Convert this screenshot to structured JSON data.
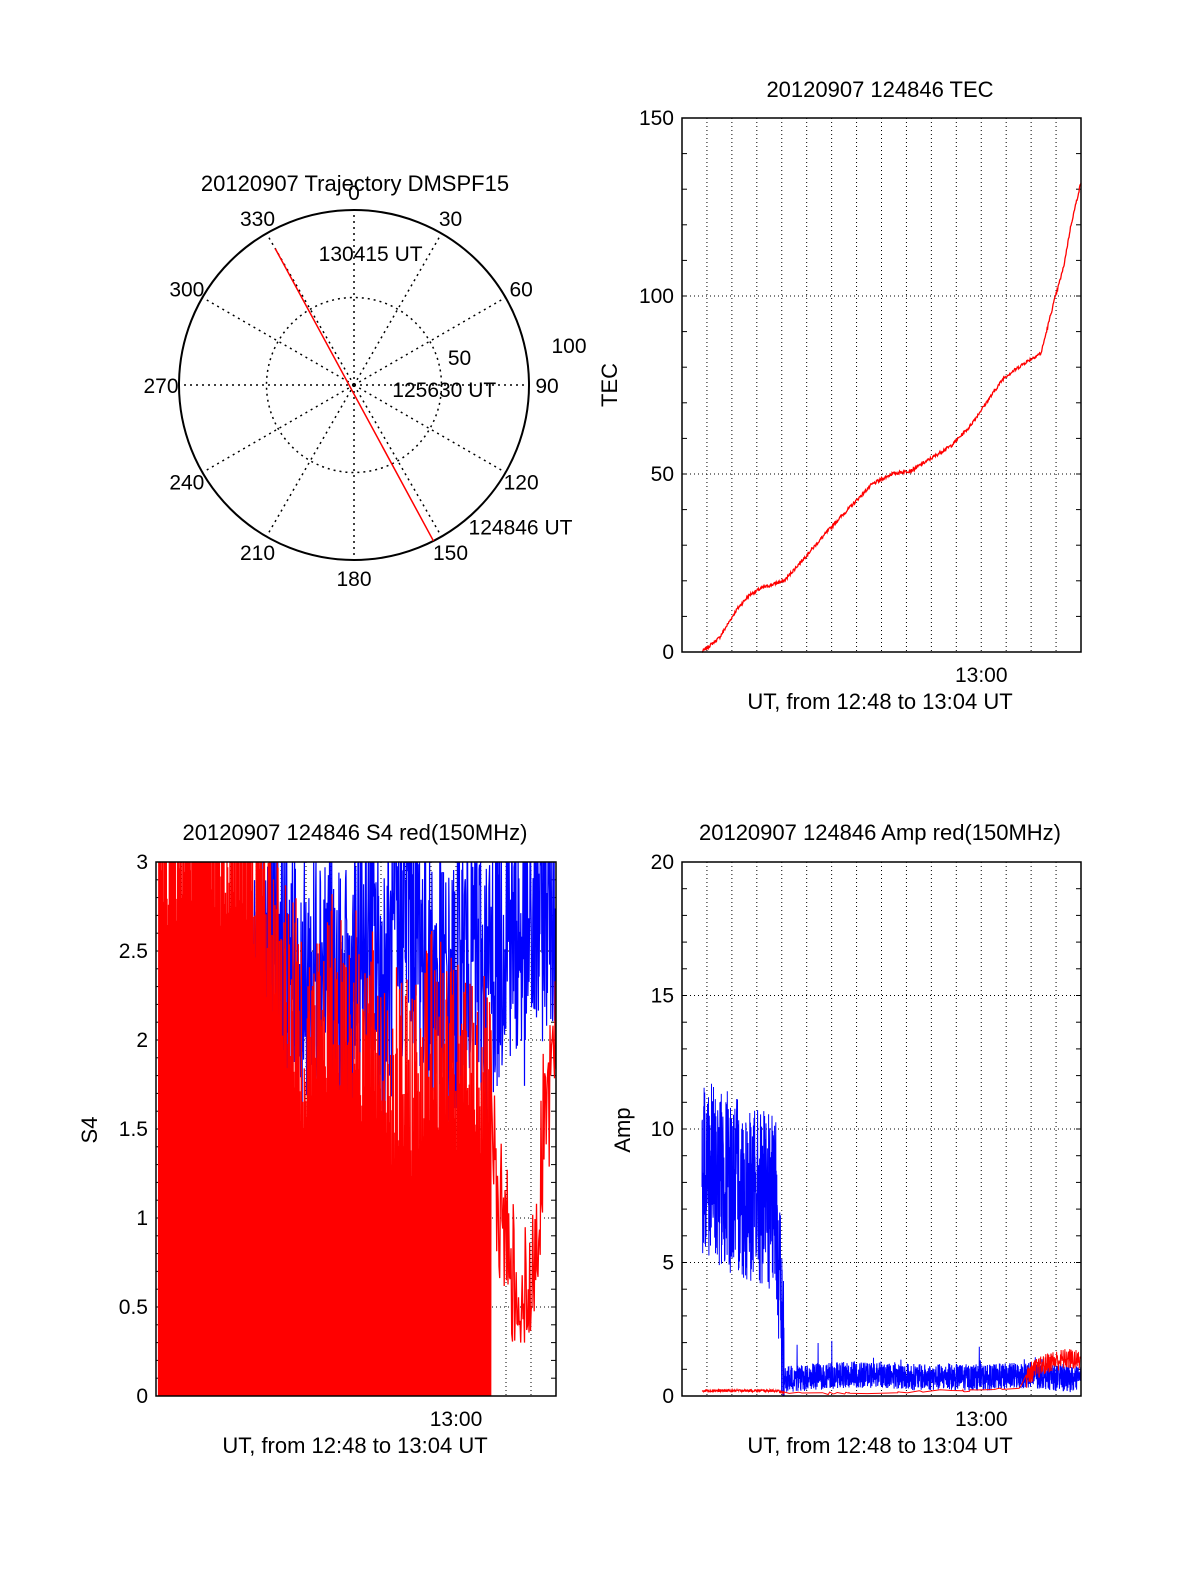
{
  "colors": {
    "red": "#ff0000",
    "blue": "#0000ff",
    "axis": "#000000"
  },
  "chart_data": [
    {
      "type": "polar",
      "title": "20120907 Trajectory DMSPF15",
      "angle_labels": [
        "0",
        "30",
        "60",
        "90",
        "120",
        "150",
        "180",
        "210",
        "240",
        "270",
        "300",
        "330"
      ],
      "radial_ticks": [
        "50",
        "100"
      ],
      "rmax": 100,
      "grid": true,
      "series": [
        {
          "color": "red",
          "points": [
            {
              "az": 153,
              "r": 100
            },
            {
              "az": 330,
              "r": 90
            }
          ]
        }
      ],
      "annotations": [
        {
          "text": "130415 UT",
          "az": 345,
          "r": 78
        },
        {
          "text": "125630 UT",
          "az": 96,
          "r": 22
        },
        {
          "text": "124846 UT",
          "az": 141,
          "r": 104
        }
      ]
    },
    {
      "type": "line",
      "title": "20120907 124846 TEC",
      "ylabel": "TEC",
      "xlabel": "UT, from 12:48 to 13:04 UT",
      "x_tick_labels": [
        {
          "x": 12.0,
          "label": "13:00"
        }
      ],
      "ylim": [
        0,
        150
      ],
      "xlim": [
        0,
        16
      ],
      "y_ticks": [
        "0",
        "50",
        "100",
        "150"
      ],
      "grid": true,
      "series": [
        {
          "color": "red",
          "x": [
            0.8,
            1.5,
            2.2,
            2.7,
            3.2,
            4.1,
            5.1,
            6.1,
            7.6,
            8.4,
            9.2,
            9.9,
            10.8,
            11.5,
            12.2,
            12.9,
            13.7,
            14.4,
            14.9,
            15.3,
            15.6,
            16.0
          ],
          "y": [
            0,
            4,
            12,
            16,
            18,
            20,
            28,
            36,
            47,
            50,
            51,
            54,
            58,
            63,
            70,
            77,
            81,
            84,
            98,
            108,
            120,
            132
          ]
        }
      ]
    },
    {
      "type": "line",
      "title": "20120907 124846 S4 red(150MHz)",
      "ylabel": "S4",
      "xlabel": "UT, from 12:48 to 13:04 UT",
      "x_tick_labels": [
        {
          "x": 12.0,
          "label": "13:00"
        }
      ],
      "ylim": [
        0,
        3
      ],
      "xlim": [
        0,
        16
      ],
      "y_ticks": [
        "0",
        "0.5",
        "1",
        "1.5",
        "2",
        "2.5",
        "3"
      ],
      "grid": true,
      "series": [
        {
          "color": "blue",
          "x": [
            0.1,
            0.8,
            1.6,
            2.4,
            3.2,
            3.6,
            3.8,
            4.3,
            5.0,
            5.8,
            6.6,
            7.5,
            8.4,
            9.2,
            10.1,
            11.0,
            11.8,
            12.5,
            13.2,
            14.0,
            14.8,
            15.5,
            16.0
          ],
          "y": [
            0.22,
            0.23,
            0.25,
            0.26,
            0.27,
            0.28,
            2.0,
            2.4,
            2.7,
            2.2,
            2.5,
            2.1,
            2.6,
            2.3,
            2.8,
            2.4,
            2.2,
            2.6,
            2.3,
            2.7,
            2.5,
            2.8,
            2.9
          ]
        },
        {
          "color": "red",
          "x": [
            0.1,
            0.8,
            1.6,
            2.4,
            3.2,
            4.0,
            5.0,
            6.0,
            7.0,
            8.0,
            9.0,
            10.0,
            11.0,
            12.0,
            13.0,
            13.6,
            14.0,
            14.5,
            15.0,
            15.5,
            16.0
          ],
          "y": [
            3.0,
            3.0,
            3.0,
            3.0,
            3.0,
            2.8,
            2.2,
            1.8,
            2.0,
            1.9,
            1.7,
            1.5,
            1.8,
            1.6,
            1.6,
            1.2,
            0.9,
            0.6,
            0.5,
            1.5,
            2.0
          ]
        }
      ]
    },
    {
      "type": "line",
      "title": "20120907 124846 Amp red(150MHz)",
      "ylabel": "Amp",
      "xlabel": "UT, from 12:48 to 13:04 UT",
      "x_tick_labels": [
        {
          "x": 12.0,
          "label": "13:00"
        }
      ],
      "ylim": [
        0,
        20
      ],
      "xlim": [
        0,
        16
      ],
      "y_ticks": [
        "0",
        "5",
        "10",
        "15",
        "20"
      ],
      "grid": true,
      "series": [
        {
          "color": "blue",
          "x": [
            0.8,
            1.5,
            2.3,
            3.1,
            3.8,
            4.1,
            5.0,
            6.5,
            8.0,
            9.5,
            11.0,
            12.5,
            14.0,
            15.0,
            16.0
          ],
          "y": [
            8.5,
            8.2,
            7.8,
            7.4,
            7.0,
            0.6,
            0.7,
            0.8,
            0.8,
            0.7,
            0.7,
            0.7,
            0.8,
            0.7,
            0.6
          ]
        },
        {
          "color": "red",
          "x": [
            0.8,
            2.0,
            3.2,
            3.8,
            4.1,
            6.0,
            8.0,
            10.0,
            12.0,
            13.5,
            14.0,
            14.8,
            15.5,
            16.0
          ],
          "y": [
            0.2,
            0.2,
            0.2,
            0.2,
            0.1,
            0.1,
            0.1,
            0.2,
            0.2,
            0.3,
            0.9,
            1.3,
            1.4,
            1.3
          ]
        }
      ]
    }
  ]
}
